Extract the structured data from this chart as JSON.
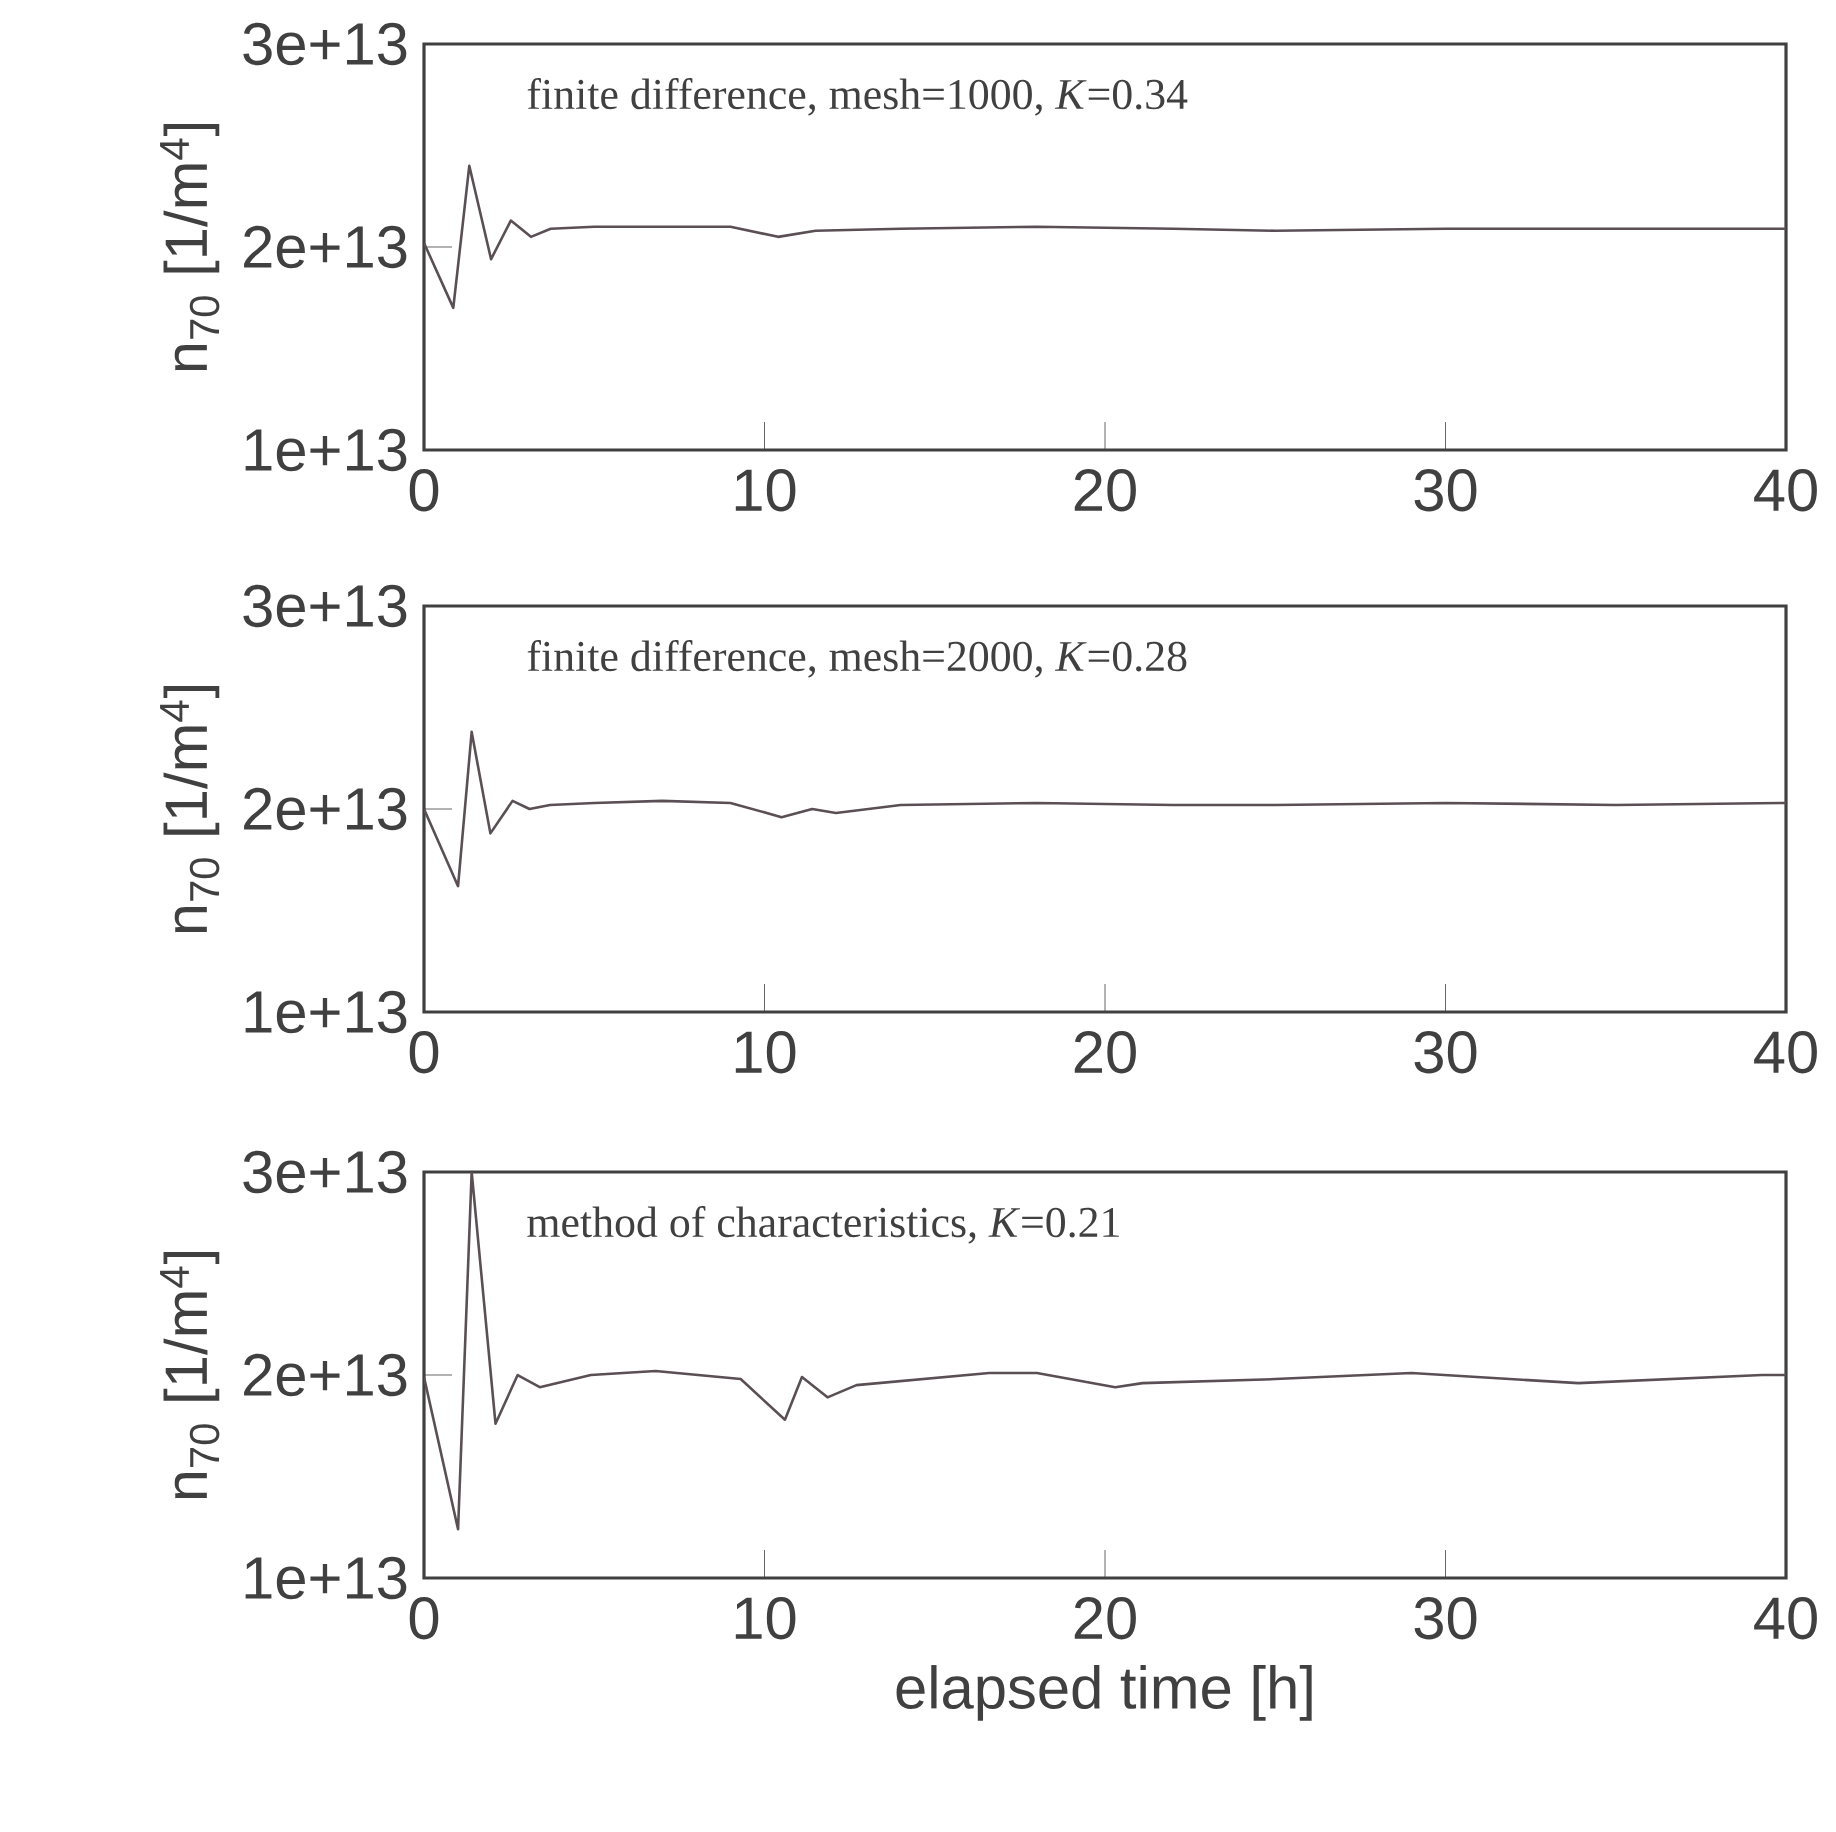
{
  "chart_data": [
    {
      "type": "line",
      "ylabel": "n$_{70}$ [1/m$^{4}$]",
      "annotations": [
        "finite difference, mesh=1000, *K*=0.34"
      ],
      "xlim": [
        0,
        40
      ],
      "ylim": [
        10000000000000.0,
        30000000000000.0
      ],
      "xticks": [
        0,
        10,
        20,
        30,
        40
      ],
      "yticks": [
        {
          "value": 10000000000000.0,
          "label": "1e+13"
        },
        {
          "value": 20000000000000.0,
          "label": "2e+13"
        },
        {
          "value": 30000000000000.0,
          "label": "3e+13"
        }
      ],
      "x": [
        0,
        0.86,
        1.33,
        1.97,
        2.55,
        3.14,
        3.72,
        5,
        7,
        9,
        10.4,
        11.5,
        14,
        18,
        22,
        25,
        30,
        35,
        40
      ],
      "series": [
        {
          "color": "#5a4f55",
          "values": [
            20200000000000.0,
            17000000000000.0,
            24000000000000.0,
            19400000000000.0,
            21300000000000.0,
            20500000000000.0,
            20900000000000.0,
            21000000000000.0,
            21000000000000.0,
            21000000000000.0,
            20500000000000.0,
            20800000000000.0,
            20900000000000.0,
            21000000000000.0,
            20900000000000.0,
            20800000000000.0,
            20900000000000.0,
            20900000000000.0,
            20900000000000.0
          ]
        }
      ]
    },
    {
      "type": "line",
      "ylabel": "n$_{70}$ [1/m$^{4}$]",
      "annotations": [
        "finite difference, mesh=2000, *K*=0.28"
      ],
      "xlim": [
        0,
        40
      ],
      "ylim": [
        10000000000000.0,
        30000000000000.0
      ],
      "xticks": [
        0,
        10,
        20,
        30,
        40
      ],
      "yticks": [
        {
          "value": 10000000000000.0,
          "label": "1e+13"
        },
        {
          "value": 20000000000000.0,
          "label": "2e+13"
        },
        {
          "value": 30000000000000.0,
          "label": "3e+13"
        }
      ],
      "x": [
        0,
        1.0,
        1.4,
        1.95,
        2.6,
        3.1,
        3.7,
        5,
        7,
        9,
        10.5,
        11.4,
        12.1,
        14,
        18,
        22,
        25,
        30,
        35,
        40
      ],
      "series": [
        {
          "color": "#5a4f55",
          "values": [
            20000000000000.0,
            16200000000000.0,
            23800000000000.0,
            18800000000000.0,
            20400000000000.0,
            20000000000000.0,
            20200000000000.0,
            20300000000000.0,
            20400000000000.0,
            20300000000000.0,
            19600000000000.0,
            20000000000000.0,
            19800000000000.0,
            20200000000000.0,
            20300000000000.0,
            20200000000000.0,
            20200000000000.0,
            20300000000000.0,
            20200000000000.0,
            20300000000000.0
          ]
        }
      ]
    },
    {
      "type": "line",
      "ylabel": "n$_{70}$ [1/m$^{4}$]",
      "xlabel": "elapsed time [h]",
      "annotations": [
        "method of characteristics, *K*=0.21"
      ],
      "xlim": [
        0,
        40
      ],
      "ylim": [
        10000000000000.0,
        30000000000000.0
      ],
      "xticks": [
        0,
        10,
        20,
        30,
        40
      ],
      "yticks": [
        {
          "value": 10000000000000.0,
          "label": "1e+13"
        },
        {
          "value": 20000000000000.0,
          "label": "2e+13"
        },
        {
          "value": 30000000000000.0,
          "label": "3e+13"
        }
      ],
      "x": [
        0,
        1.0,
        1.4,
        2.1,
        2.75,
        3.4,
        4.9,
        6.8,
        9.3,
        10.6,
        11.1,
        11.85,
        12.7,
        16.6,
        18.0,
        20.3,
        21.1,
        25,
        29.0,
        33.9,
        39.3,
        40
      ],
      "series": [
        {
          "color": "#5a4f55",
          "values": [
            19900000000000.0,
            12400000000000.0,
            30000000000000.0,
            17600000000000.0,
            20000000000000.0,
            19400000000000.0,
            20000000000000.0,
            20200000000000.0,
            19800000000000.0,
            17800000000000.0,
            19900000000000.0,
            18900000000000.0,
            19500000000000.0,
            20100000000000.0,
            20100000000000.0,
            19400000000000.0,
            19600000000000.0,
            19800000000000.0,
            20100000000000.0,
            19600000000000.0,
            20000000000000.0,
            20000000000000.0
          ]
        }
      ]
    }
  ]
}
